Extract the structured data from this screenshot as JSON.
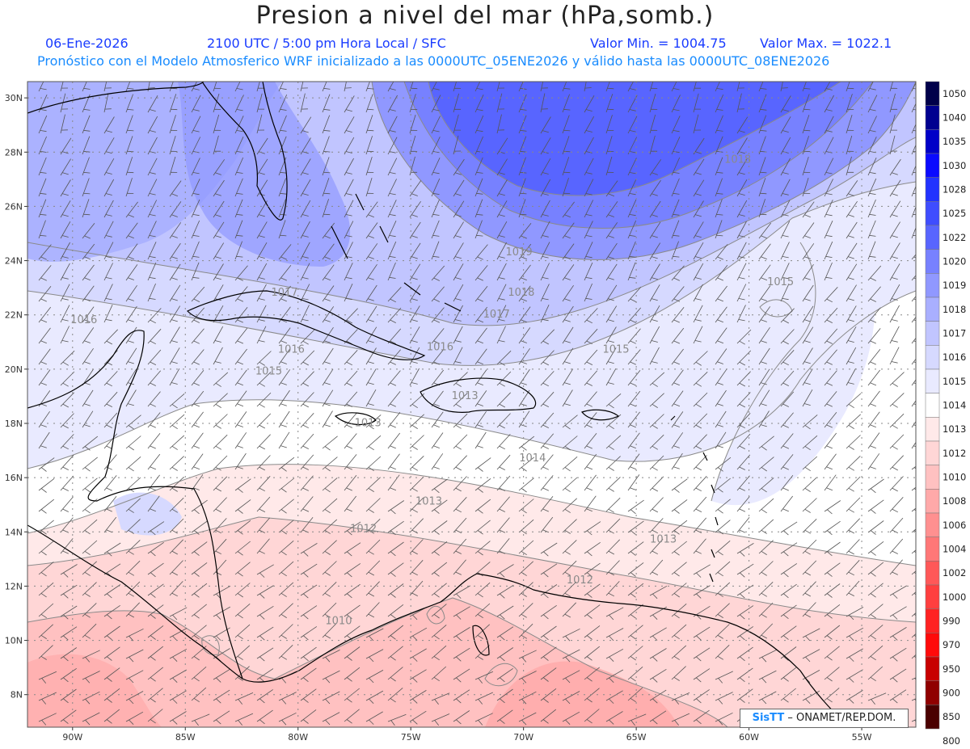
{
  "header": {
    "title": "Presion a nivel del mar (hPa,somb.)",
    "date": "06-Ene-2026",
    "time": "2100 UTC / 5:00 pm Hora Local / SFC",
    "min_label": "Valor Min. = 1004.75",
    "max_label": "Valor Max. = 1022.1",
    "subtitle": "Pronóstico con el Modelo Atmosferico WRF inicializado a las 0000UTC_05ENE2026 y válido hasta las  0000UTC_08ENE2026"
  },
  "axes": {
    "lat_labels": [
      "30N",
      "28N",
      "26N",
      "24N",
      "22N",
      "20N",
      "18N",
      "16N",
      "14N",
      "12N",
      "10N",
      "8N"
    ],
    "lon_labels": [
      "90W",
      "85W",
      "80W",
      "75W",
      "70W",
      "65W",
      "60W",
      "55W"
    ]
  },
  "legend": {
    "levels": [
      "1050",
      "1040",
      "1035",
      "1030",
      "1028",
      "1025",
      "1022",
      "1020",
      "1019",
      "1018",
      "1017",
      "1016",
      "1015",
      "1014",
      "1013",
      "1012",
      "1010",
      "1008",
      "1006",
      "1004",
      "1002",
      "1000",
      "990",
      "970",
      "950",
      "900",
      "850",
      "800"
    ],
    "colors": [
      "#00004a",
      "#000090",
      "#0000c8",
      "#0a0aff",
      "#2233ff",
      "#3f4dff",
      "#5865ff",
      "#7781ff",
      "#9098ff",
      "#a9afff",
      "#c1c5ff",
      "#d6d9ff",
      "#e9eaff",
      "#ffffff",
      "#ffe9e9",
      "#ffd6d6",
      "#ffc1c1",
      "#ffa9a9",
      "#ff9090",
      "#ff7777",
      "#ff5858",
      "#ff3f3f",
      "#ff2222",
      "#ff0a0a",
      "#c80000",
      "#900000",
      "#4a0000"
    ]
  },
  "contour_labels": [
    {
      "text": "1018",
      "lon": -60.5,
      "lat": 27.6
    },
    {
      "text": "1019",
      "lon": -70.2,
      "lat": 24.2
    },
    {
      "text": "1018",
      "lon": -70.1,
      "lat": 22.7
    },
    {
      "text": "1017",
      "lon": -71.2,
      "lat": 21.9
    },
    {
      "text": "1017",
      "lon": -80.6,
      "lat": 22.7
    },
    {
      "text": "1016",
      "lon": -89.5,
      "lat": 21.7
    },
    {
      "text": "1016",
      "lon": -80.3,
      "lat": 20.6
    },
    {
      "text": "1016",
      "lon": -73.7,
      "lat": 20.7
    },
    {
      "text": "1015",
      "lon": -81.3,
      "lat": 19.8
    },
    {
      "text": "1015",
      "lon": -65.9,
      "lat": 20.6
    },
    {
      "text": "1015",
      "lon": -58.6,
      "lat": 23.1
    },
    {
      "text": "1013",
      "lon": -72.6,
      "lat": 18.9
    },
    {
      "text": "1013",
      "lon": -76.9,
      "lat": 17.9
    },
    {
      "text": "1014",
      "lon": -69.6,
      "lat": 16.6
    },
    {
      "text": "1013",
      "lon": -74.2,
      "lat": 15.0
    },
    {
      "text": "1012",
      "lon": -77.1,
      "lat": 14.0
    },
    {
      "text": "1013",
      "lon": -63.8,
      "lat": 13.6
    },
    {
      "text": "1012",
      "lon": -67.5,
      "lat": 12.1
    },
    {
      "text": "1010",
      "lon": -78.2,
      "lat": 10.6
    }
  ],
  "credit": {
    "brand": "SisTT",
    "org": "– ONAMET/REP.DOM."
  }
}
